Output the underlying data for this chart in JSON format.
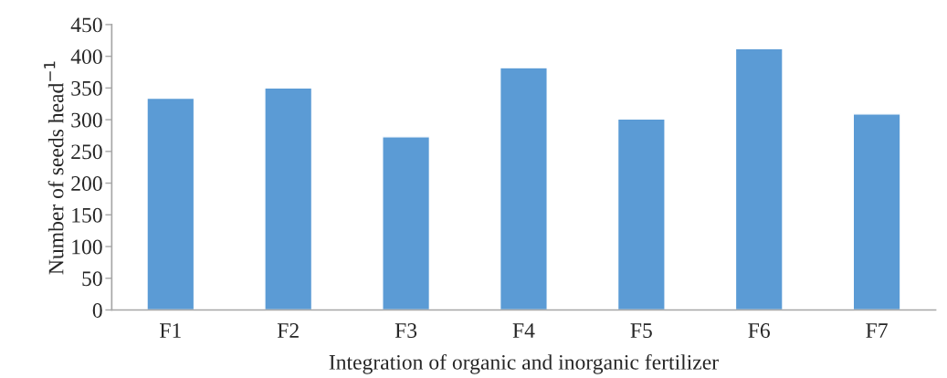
{
  "chart_data": {
    "type": "bar",
    "xlabel": "Integration of organic and inorganic fertilizer",
    "ylabel": "Number of seeds head$^{−1}$",
    "categories": [
      "F1",
      "F2",
      "F3",
      "F4",
      "F5",
      "F6",
      "F7"
    ],
    "values": [
      334,
      350,
      273,
      382,
      301,
      412,
      309
    ],
    "color": "#5b9bd5",
    "ylim": [
      0,
      450
    ],
    "yticks": [
      0,
      50,
      100,
      150,
      200,
      250,
      300,
      350,
      400,
      450
    ],
    "grid": false,
    "legend": false
  }
}
